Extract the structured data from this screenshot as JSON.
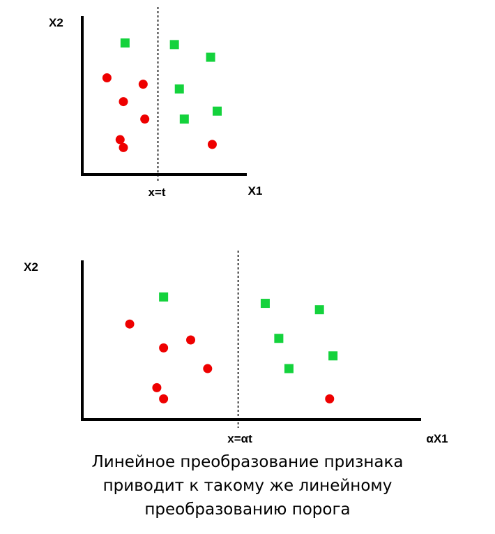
{
  "colors": {
    "class_a": "#ee0000",
    "class_b": "#14d23c",
    "axis": "#000000"
  },
  "top_plot": {
    "ylabel": "X2",
    "xlabel": "X1",
    "threshold_label": "x=t",
    "threshold_x": 4.6,
    "circles": [
      [
        1.5,
        6.1
      ],
      [
        3.7,
        5.7
      ],
      [
        2.5,
        4.6
      ],
      [
        3.8,
        3.5
      ],
      [
        2.3,
        2.2
      ],
      [
        2.5,
        1.7
      ],
      [
        7.9,
        1.9
      ]
    ],
    "squares": [
      [
        2.6,
        8.3
      ],
      [
        5.6,
        8.2
      ],
      [
        7.8,
        7.4
      ],
      [
        5.9,
        5.4
      ],
      [
        6.2,
        3.5
      ],
      [
        8.2,
        4.0
      ]
    ]
  },
  "bottom_plot": {
    "ylabel": "X2",
    "xlabel": "αX1",
    "threshold_label": "x=αt",
    "threshold_x": 4.6,
    "circles": [
      [
        1.4,
        6.0
      ],
      [
        2.4,
        4.5
      ],
      [
        3.2,
        5.0
      ],
      [
        3.7,
        3.2
      ],
      [
        2.2,
        2.0
      ],
      [
        2.4,
        1.3
      ],
      [
        7.3,
        1.3
      ]
    ],
    "squares": [
      [
        2.4,
        7.7
      ],
      [
        5.4,
        7.3
      ],
      [
        7.0,
        6.9
      ],
      [
        5.8,
        5.1
      ],
      [
        7.4,
        4.0
      ],
      [
        6.1,
        3.2
      ]
    ]
  },
  "caption": {
    "line1": "Линейное преобразование признака",
    "line2": "приводит к такому же линейному",
    "line3": "преобразованию порога"
  }
}
